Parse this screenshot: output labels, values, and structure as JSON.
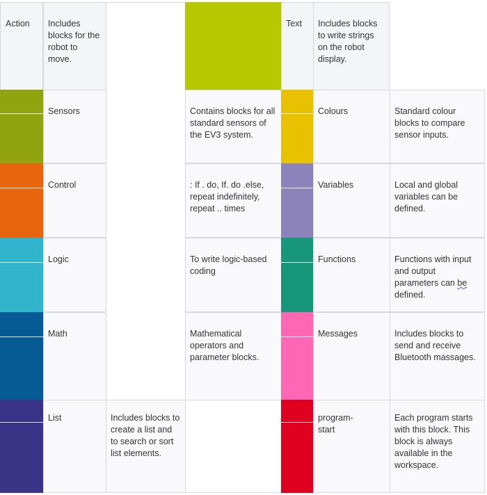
{
  "header": {
    "action_label": "Action",
    "action_desc": "Includes blocks for the robot to move.",
    "text_label": "Text",
    "text_desc": "Includes blocks to write strings on the robot display."
  },
  "colors": {
    "action": "#b5c800",
    "sensors": "#8fa40e",
    "control": "#e8650e",
    "logic": "#31b5cc",
    "math": "#065b95",
    "list": "#3a3487",
    "colours": "#e8c100",
    "variables": "#8b83b9",
    "functions": "#17977a",
    "messages": "#ff67b5",
    "program_start": "#e00020"
  },
  "rows": [
    {
      "left_label": "Sensors",
      "left_desc": "Contains blocks for all standard sensors of the EV3 system.",
      "right_label": "Colours",
      "right_desc": "Standard colour blocks to compare sensor inputs."
    },
    {
      "left_label": "Control",
      "left_desc": ": If . do, If. do .else, repeat indefinitely, repeat .. times",
      "right_label": "Variables",
      "right_desc": "Local and global variables can be defined."
    },
    {
      "left_label": "Logic",
      "left_desc": "To write logic-based coding",
      "right_label": "Functions",
      "right_desc_pre": "Functions with input and output parameters can ",
      "right_desc_be": "be",
      "right_desc_post": " defined."
    },
    {
      "left_label": "Math",
      "left_desc": "Mathematical operators and parameter blocks.",
      "right_label": "Messages",
      "right_desc": "Includes blocks to send and receive Bluetooth massages."
    },
    {
      "left_label": "List",
      "left_desc": "Includes blocks to create a list and to search or sort list elements.",
      "right_label": "program-start",
      "right_desc": "Each program starts with this block. This block is always available in the workspace."
    }
  ]
}
